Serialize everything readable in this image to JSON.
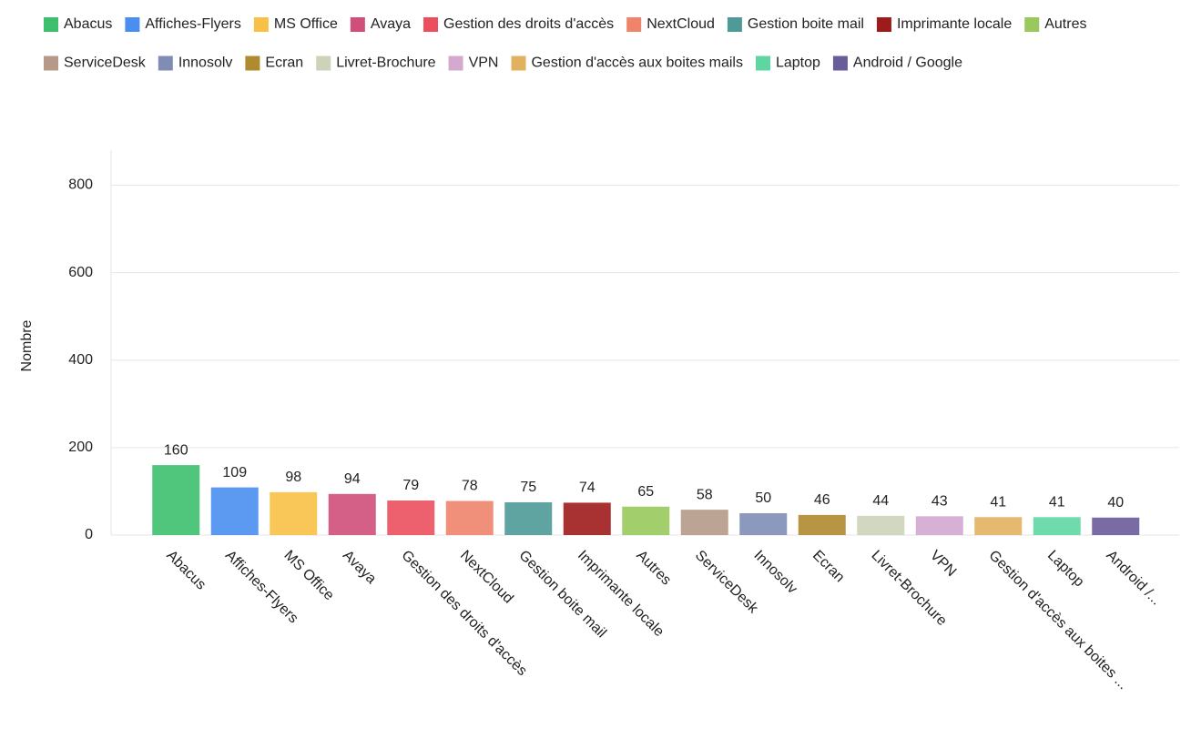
{
  "chart_data": {
    "type": "bar",
    "y_label": "Nombre",
    "categories": [
      "Abacus",
      "Affiches-Flyers",
      "MS Office",
      "Avaya",
      "Gestion des droits d'accès",
      "NextCloud",
      "Gestion boite mail",
      "Imprimante locale",
      "Autres",
      "ServiceDesk",
      "Innosolv",
      "Ecran",
      "Livret-Brochure",
      "VPN",
      "Gestion d'accès aux boites mails",
      "Laptop",
      "Android / Google"
    ],
    "xtick_labels": [
      "Abacus",
      "Affiches-Flyers",
      "MS Office",
      "Avaya",
      "Gestion des droits d'accès",
      "NextCloud",
      "Gestion boite mail",
      "Imprimante locale",
      "Autres",
      "ServiceDesk",
      "Innosolv",
      "Ecran",
      "Livret-Brochure",
      "VPN",
      "Gestion d'accès aux boites ...",
      "Laptop",
      "Android /..."
    ],
    "values": [
      160,
      109,
      98,
      94,
      79,
      78,
      75,
      74,
      65,
      58,
      50,
      46,
      44,
      43,
      41,
      41,
      40
    ],
    "colors": [
      "#3dbf6e",
      "#4a8ef0",
      "#f7c145",
      "#cf4f7a",
      "#eb4f5e",
      "#f0846b",
      "#4f9a98",
      "#9e1b1b",
      "#99c95c",
      "#b59a8a",
      "#7f8db5",
      "#b08a2e",
      "#cdd3b8",
      "#d3a9d0",
      "#e2b15f",
      "#5fd6a2",
      "#6a5b9a"
    ],
    "ylim": [
      0,
      880
    ],
    "yticks": [
      0,
      200,
      400,
      600,
      800
    ],
    "grid": true,
    "legend": "top"
  }
}
